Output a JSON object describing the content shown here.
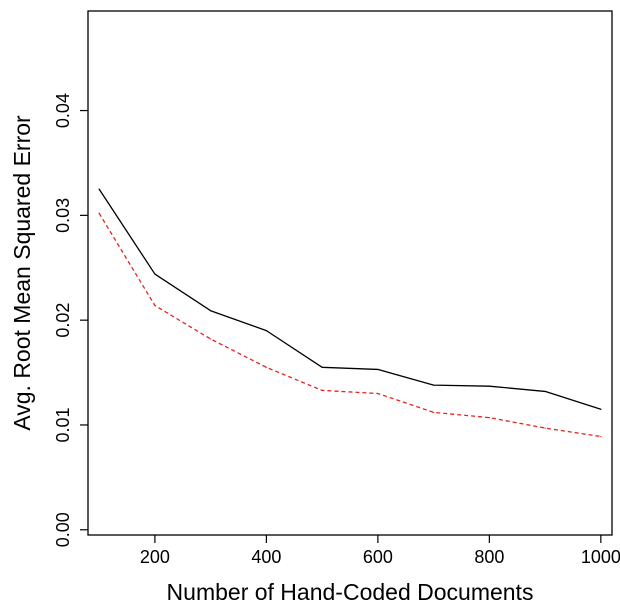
{
  "chart_data": {
    "type": "line",
    "title": "",
    "xlabel": "Number of Hand-Coded Documents",
    "ylabel": "Avg. Root Mean Squared Error",
    "xlim": [
      80,
      1020
    ],
    "ylim": [
      -0.0005,
      0.0495
    ],
    "x_ticks": [
      200,
      400,
      600,
      800,
      1000
    ],
    "y_ticks": [
      0.0,
      0.01,
      0.02,
      0.03,
      0.04
    ],
    "x_tick_labels": [
      "200",
      "400",
      "600",
      "800",
      "1000"
    ],
    "y_tick_labels": [
      "0.00",
      "0.01",
      "0.02",
      "0.03",
      "0.04"
    ],
    "grid": false,
    "legend": "none",
    "x": [
      100,
      200,
      300,
      400,
      500,
      600,
      700,
      800,
      900,
      1000
    ],
    "series": [
      {
        "style": "solid",
        "color": "#000000",
        "values": [
          0.0325,
          0.0244,
          0.0209,
          0.019,
          0.0155,
          0.0153,
          0.0138,
          0.0137,
          0.0132,
          0.0115
        ]
      },
      {
        "style": "dashed",
        "color": "#e8231f",
        "values": [
          0.0302,
          0.0214,
          0.0182,
          0.0155,
          0.0133,
          0.013,
          0.0112,
          0.0107,
          0.0097,
          0.0089
        ]
      }
    ]
  }
}
